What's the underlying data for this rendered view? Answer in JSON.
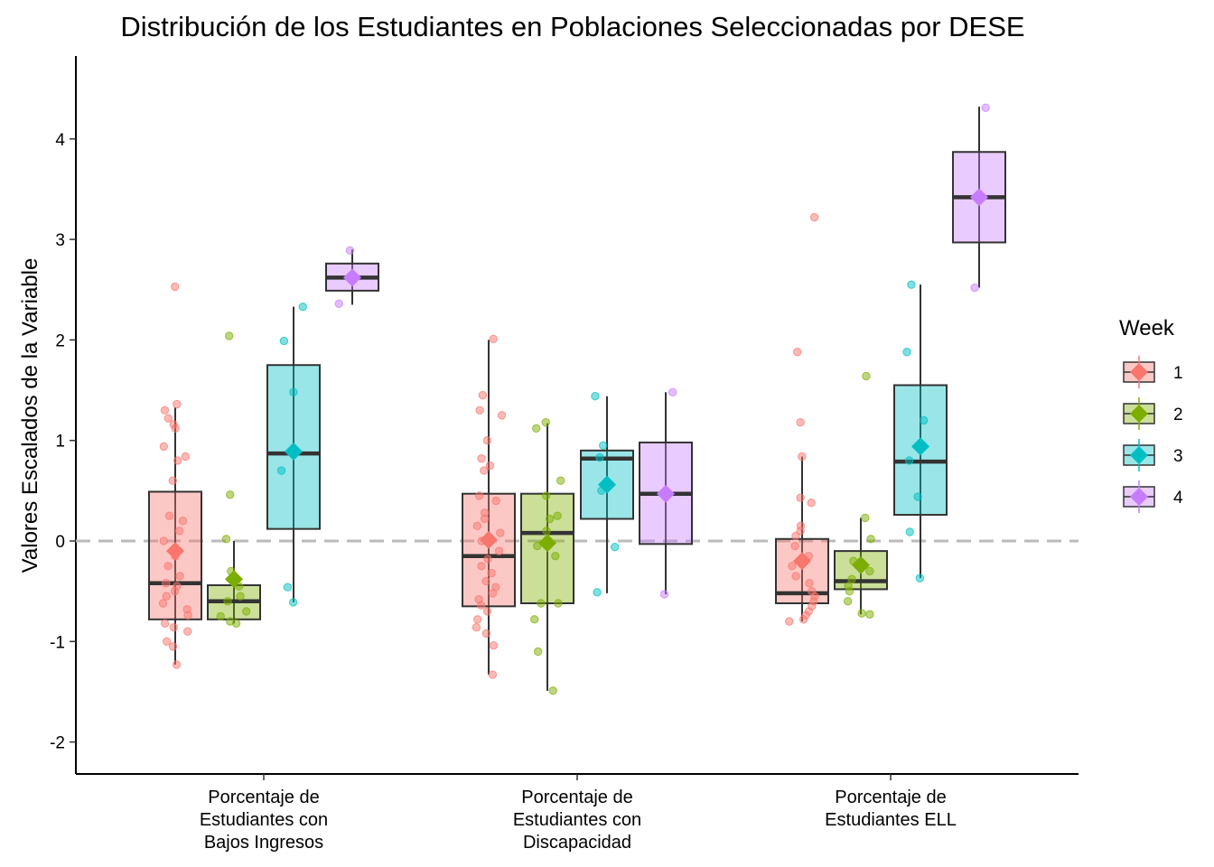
{
  "chart_data": {
    "type": "box",
    "title": "Distribución de los Estudiantes en Poblaciones Seleccionadas por DESE",
    "xlabel": "",
    "ylabel": "Valores Escalados de la Variable",
    "ylim": [
      -2.3,
      4.8
    ],
    "yticks": [
      -2,
      -1,
      0,
      1,
      2,
      3,
      4
    ],
    "reference_line": 0,
    "grid": false,
    "legend": {
      "title": "Week",
      "position": "right"
    },
    "categories": [
      [
        "Porcentaje de",
        "Estudiantes con",
        "Bajos Ingresos"
      ],
      [
        "Porcentaje de",
        "Estudiantes con",
        "Discapacidad"
      ],
      [
        "Porcentaje de",
        "Estudiantes ELL"
      ]
    ],
    "series": [
      {
        "name": "1",
        "color": "#F8766D",
        "boxes": [
          {
            "min": -1.23,
            "q1": -0.78,
            "median": -0.42,
            "q3": 0.49,
            "max": 1.33,
            "mean": -0.1,
            "points": [
              2.53,
              1.36,
              1.3,
              1.22,
              1.16,
              1.12,
              0.94,
              0.84,
              0.8,
              0.6,
              0.25,
              0.2,
              0.1,
              0.0,
              -0.15,
              -0.25,
              -0.35,
              -0.42,
              -0.45,
              -0.5,
              -0.55,
              -0.62,
              -0.68,
              -0.74,
              -0.82,
              -0.86,
              -0.9,
              -1.0,
              -1.05,
              -1.23
            ]
          },
          {
            "min": -1.33,
            "q1": -0.65,
            "median": -0.15,
            "q3": 0.47,
            "max": 2.0,
            "mean": 0.01,
            "points": [
              2.01,
              1.45,
              1.3,
              1.25,
              1.0,
              0.82,
              0.75,
              0.7,
              0.45,
              0.4,
              0.28,
              0.22,
              0.15,
              0.08,
              0.0,
              -0.1,
              -0.18,
              -0.25,
              -0.32,
              -0.4,
              -0.46,
              -0.52,
              -0.58,
              -0.64,
              -0.7,
              -0.78,
              -0.86,
              -0.92,
              -1.04,
              -1.33
            ]
          },
          {
            "min": -0.8,
            "q1": -0.62,
            "median": -0.52,
            "q3": 0.02,
            "max": 0.84,
            "mean": -0.2,
            "points": [
              3.22,
              1.88,
              1.18,
              0.84,
              0.43,
              0.38,
              0.15,
              0.1,
              0.05,
              -0.05,
              -0.15,
              -0.25,
              -0.35,
              -0.42,
              -0.5,
              -0.55,
              -0.6,
              -0.65,
              -0.7,
              -0.74,
              -0.78,
              -0.8
            ]
          }
        ]
      },
      {
        "name": "2",
        "color": "#7CAE00",
        "boxes": [
          {
            "min": -0.82,
            "q1": -0.78,
            "median": -0.6,
            "q3": -0.44,
            "max": 0.0,
            "mean": -0.38,
            "points": [
              2.04,
              0.46,
              0.02,
              -0.3,
              -0.45,
              -0.55,
              -0.6,
              -0.7,
              -0.75,
              -0.8,
              -0.82
            ]
          },
          {
            "min": -1.49,
            "q1": -0.62,
            "median": 0.08,
            "q3": 0.47,
            "max": 1.17,
            "mean": -0.02,
            "points": [
              1.18,
              1.12,
              0.6,
              0.45,
              0.25,
              0.22,
              0.1,
              -0.05,
              -0.15,
              -0.62,
              -0.62,
              -0.78,
              -1.1,
              -1.49
            ]
          },
          {
            "min": -0.73,
            "q1": -0.48,
            "median": -0.4,
            "q3": -0.1,
            "max": 0.23,
            "mean": -0.24,
            "points": [
              1.64,
              0.23,
              0.02,
              -0.2,
              -0.3,
              -0.38,
              -0.45,
              -0.5,
              -0.6,
              -0.72,
              -0.73
            ]
          }
        ]
      },
      {
        "name": "3",
        "color": "#00BFC4",
        "boxes": [
          {
            "min": -0.61,
            "q1": 0.12,
            "median": 0.87,
            "q3": 1.75,
            "max": 2.33,
            "mean": 0.89,
            "points": [
              2.33,
              1.99,
              1.48,
              0.7,
              -0.46,
              -0.61
            ]
          },
          {
            "min": -0.52,
            "q1": 0.22,
            "median": 0.82,
            "q3": 0.9,
            "max": 1.44,
            "mean": 0.56,
            "points": [
              1.44,
              0.95,
              0.83,
              0.5,
              -0.06,
              -0.51
            ]
          },
          {
            "min": -0.37,
            "q1": 0.26,
            "median": 0.79,
            "q3": 1.55,
            "max": 2.55,
            "mean": 0.94,
            "points": [
              2.55,
              1.88,
              1.2,
              0.8,
              0.44,
              0.09,
              -0.37
            ]
          }
        ]
      },
      {
        "name": "4",
        "color": "#C77CFF",
        "boxes": [
          {
            "min": 2.35,
            "q1": 2.49,
            "median": 2.62,
            "q3": 2.76,
            "max": 2.9,
            "mean": 2.62,
            "points": [
              2.89,
              2.36
            ]
          },
          {
            "min": -0.53,
            "q1": -0.03,
            "median": 0.47,
            "q3": 0.98,
            "max": 1.48,
            "mean": 0.47,
            "points": [
              1.48,
              -0.53
            ]
          },
          {
            "min": 2.52,
            "q1": 2.97,
            "median": 3.42,
            "q3": 3.87,
            "max": 4.32,
            "mean": 3.42,
            "points": [
              4.31,
              2.52
            ]
          }
        ]
      }
    ]
  }
}
